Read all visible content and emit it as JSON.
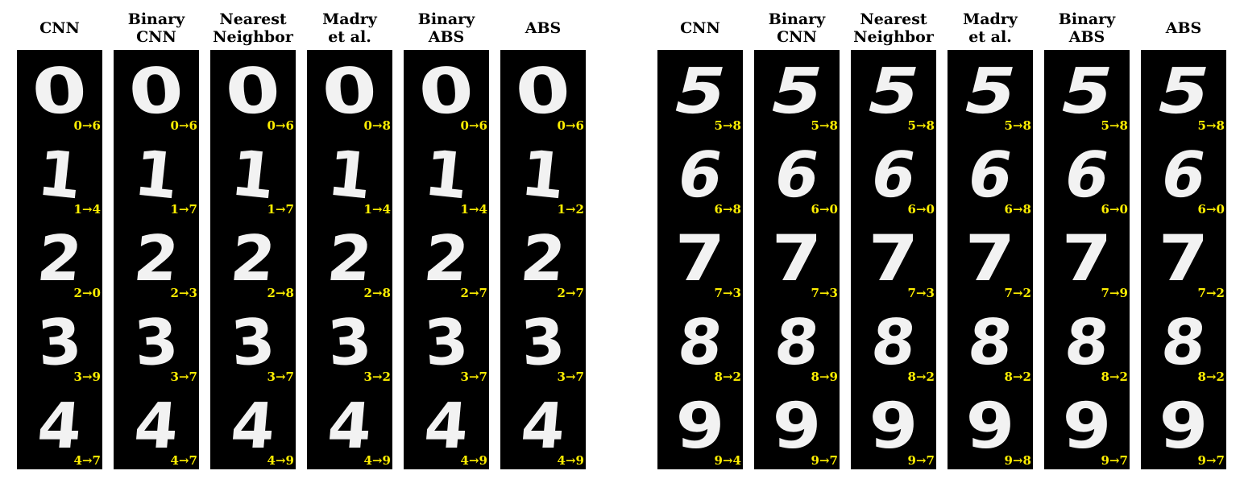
{
  "columns": [
    {
      "title_lines": [
        "CNN"
      ]
    },
    {
      "title_lines": [
        "Binary",
        "CNN"
      ]
    },
    {
      "title_lines": [
        "Nearest",
        "Neighbor"
      ]
    },
    {
      "title_lines": [
        "Madry",
        "et al."
      ]
    },
    {
      "title_lines": [
        "Binary",
        "ABS"
      ]
    },
    {
      "title_lines": [
        "ABS"
      ]
    }
  ],
  "panels": [
    {
      "digits": [
        "0",
        "1",
        "2",
        "3",
        "4"
      ],
      "labels": [
        [
          "0→6",
          "1→4",
          "2→0",
          "3→9",
          "4→7"
        ],
        [
          "0→6",
          "1→7",
          "2→3",
          "3→7",
          "4→7"
        ],
        [
          "0→6",
          "1→7",
          "2→8",
          "3→7",
          "4→9"
        ],
        [
          "0→8",
          "1→4",
          "2→8",
          "3→2",
          "4→9"
        ],
        [
          "0→6",
          "1→4",
          "2→7",
          "3→7",
          "4→9"
        ],
        [
          "0→6",
          "1→2",
          "2→7",
          "3→7",
          "4→9"
        ]
      ]
    },
    {
      "digits": [
        "5",
        "6",
        "7",
        "8",
        "9"
      ],
      "labels": [
        [
          "5→8",
          "6→8",
          "7→3",
          "8→2",
          "9→4"
        ],
        [
          "5→8",
          "6→0",
          "7→3",
          "8→9",
          "9→7"
        ],
        [
          "5→8",
          "6→0",
          "7→3",
          "8→2",
          "9→7"
        ],
        [
          "5→8",
          "6→8",
          "7→2",
          "8→2",
          "9→8"
        ],
        [
          "5→8",
          "6→0",
          "7→9",
          "8→2",
          "9→7"
        ],
        [
          "5→8",
          "6→0",
          "7→2",
          "8→2",
          "9→7"
        ]
      ]
    }
  ]
}
